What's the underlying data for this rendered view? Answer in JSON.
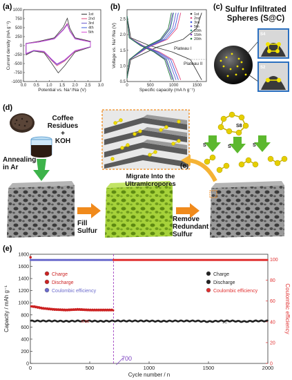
{
  "labels": {
    "a": "(a)",
    "b": "(b)",
    "c": "(c)",
    "d": "(d)",
    "e": "(e)",
    "d_inset": "(e)"
  },
  "panel_c": {
    "title_line1": "Sulfur Infiltrated",
    "title_line2": "Spheres (S@C)",
    "s4": "S4",
    "s2": "S2"
  },
  "panel_d": {
    "coffee_line1": "Coffee Residues",
    "coffee_line2": "+",
    "coffee_line3": "KOH",
    "annealing_line1": "Annealing",
    "annealing_line2": "in Ar",
    "fill_line1": "Fill",
    "fill_line2": "Sulfur",
    "migrate_line1": "Migrate Into the",
    "migrate_line2": "Ultramicropores",
    "remove_line1": "Remove",
    "remove_line2": "Redundant",
    "remove_line3": "Sulfur",
    "s8": "S8",
    "s_label": "S"
  },
  "chart_data": [
    {
      "type": "line",
      "panel": "a",
      "xlabel": "Potential vs. Na⁺/Na (V)",
      "ylabel": "Current density (mA g⁻¹)",
      "xlim": [
        0.0,
        3.0
      ],
      "ylim": [
        -1000,
        1000
      ],
      "xticks": [
        "0.0",
        "0.5",
        "1.0",
        "1.5",
        "2.0",
        "2.5",
        "3.0"
      ],
      "yticks": [
        "1000",
        "750",
        "500",
        "250",
        "0",
        "-250",
        "-500",
        "-750",
        "-1000"
      ],
      "legend_position": "top-right",
      "series": [
        {
          "name": "1st",
          "color": "#333333"
        },
        {
          "name": "2nd",
          "color": "#e0457b"
        },
        {
          "name": "3rd",
          "color": "#6a5acd"
        },
        {
          "name": "4th",
          "color": "#3b5bdb"
        },
        {
          "name": "5th",
          "color": "#d64fd6"
        }
      ]
    },
    {
      "type": "line",
      "panel": "b",
      "xlabel": "Specific capacity (mA h g⁻¹)",
      "ylabel": "Voltage vs. Na⁺/Na (V)",
      "xlim": [
        0,
        1700
      ],
      "ylim": [
        0.5,
        2.8
      ],
      "xticks": [
        "0",
        "500",
        "1000",
        "1500"
      ],
      "yticks": [
        "0.5",
        "1.0",
        "1.5",
        "2.0",
        "2.5"
      ],
      "annotations": [
        "Plateau I",
        "Plateau II"
      ],
      "legend_position": "top-left",
      "series": [
        {
          "name": "1st",
          "color": "#333333"
        },
        {
          "name": "2nd",
          "color": "#e0457b"
        },
        {
          "name": "3rd",
          "color": "#3b5bdb"
        },
        {
          "name": "5th",
          "color": "#6a5acd"
        },
        {
          "name": "10th",
          "color": "#2f9e8f"
        },
        {
          "name": "15th",
          "color": "#7a3fbf"
        },
        {
          "name": "20th",
          "color": "#1f7a3a"
        }
      ]
    },
    {
      "type": "scatter",
      "panel": "e",
      "xlabel": "Cycle number / n",
      "ylabel": "Capacity / mAh g⁻¹",
      "ylabel_right": "Coulombic efficiency",
      "xlim": [
        0,
        2000
      ],
      "ylim": [
        0,
        1800
      ],
      "ylim_right": [
        0,
        105
      ],
      "xticks": [
        "0",
        "500",
        "1000",
        "1500",
        "2000"
      ],
      "yticks": [
        "0",
        "200",
        "400",
        "600",
        "800",
        "1000",
        "1200",
        "1400",
        "1600",
        "1800"
      ],
      "yticks_right": [
        "0",
        "20",
        "40",
        "60",
        "80",
        "100"
      ],
      "annotations": [
        "0.5C",
        "1C",
        "700"
      ],
      "divider_x": 700,
      "legend_left": [
        {
          "name": "Charge",
          "color": "#cc2222"
        },
        {
          "name": "Discharge",
          "color": "#cc2222"
        },
        {
          "name": "Coulombic efficiency",
          "color": "#6a6acc"
        }
      ],
      "legend_right": [
        {
          "name": "Charge",
          "color": "#222222"
        },
        {
          "name": "Discharge",
          "color": "#222222"
        },
        {
          "name": "Coulombic efficiency",
          "color": "#e03030"
        }
      ],
      "series": [
        {
          "name": "0.5C capacity",
          "color": "#cc2222",
          "x": [
            1,
            5,
            20,
            50,
            100,
            200,
            300,
            400,
            500,
            600,
            700
          ],
          "y": [
            1750,
            940,
            940,
            930,
            910,
            890,
            880,
            890,
            880,
            880,
            880
          ]
        },
        {
          "name": "1C capacity",
          "color": "#222222",
          "x": [
            0,
            100,
            200,
            300,
            400,
            500,
            600,
            700,
            800,
            900,
            1000,
            1100,
            1200,
            1300,
            1400,
            1500,
            1600,
            1700,
            1800,
            1900,
            2000
          ],
          "y": [
            700,
            700,
            700,
            695,
            700,
            700,
            695,
            700,
            700,
            700,
            700,
            695,
            700,
            700,
            700,
            690,
            700,
            700,
            690,
            700,
            700
          ]
        },
        {
          "name": "CE 0.5C",
          "color": "#6a6acc",
          "x": [
            0,
            100,
            200,
            300,
            400,
            500,
            600,
            700
          ],
          "y_right": [
            99.5,
            99.5,
            99.5,
            99.5,
            99.5,
            99.5,
            99.5,
            99.5
          ]
        },
        {
          "name": "CE 1C",
          "color": "#e03030",
          "x": [
            700,
            1000,
            1300,
            1600,
            2000
          ],
          "y_right": [
            99.5,
            99.5,
            99.5,
            99.5,
            99.5
          ]
        }
      ]
    }
  ]
}
